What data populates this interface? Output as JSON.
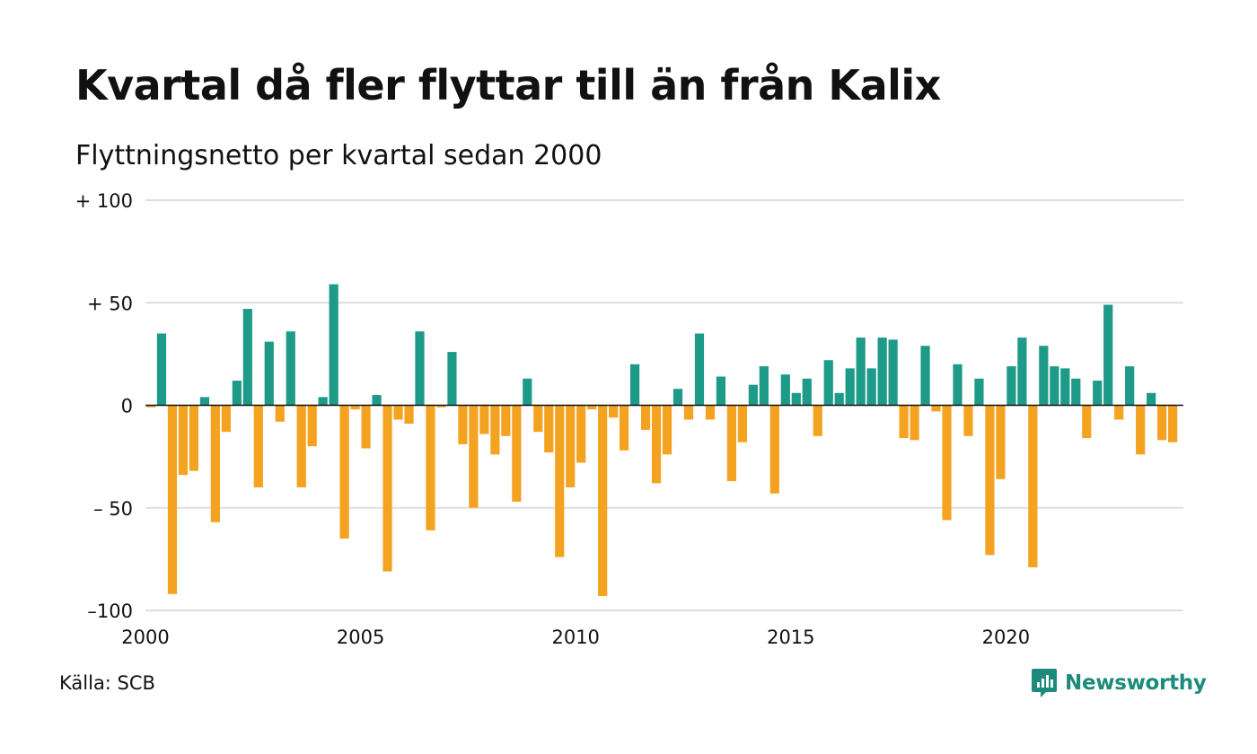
{
  "title": "Kvartal då fler flyttar till än från Kalix",
  "subtitle": "Flyttningsnetto per kvartal sedan 2000",
  "source": "Källa: SCB",
  "brand": {
    "name": "Newsworthy",
    "logo_icon": "bar-chart-speech-bubble-icon"
  },
  "chart_data": {
    "type": "bar",
    "x_start": "2000 Q1",
    "period": "quarter",
    "values": [
      -1,
      35,
      -92,
      -34,
      -32,
      4,
      -57,
      -13,
      12,
      47,
      -40,
      31,
      -8,
      36,
      -40,
      -20,
      4,
      59,
      -65,
      -2,
      -21,
      5,
      -81,
      -7,
      -9,
      36,
      -61,
      -1,
      26,
      -19,
      -50,
      -14,
      -24,
      -15,
      -47,
      13,
      -13,
      -23,
      -74,
      -40,
      -28,
      -2,
      -93,
      -6,
      -22,
      20,
      -12,
      -38,
      -24,
      8,
      -7,
      35,
      -7,
      14,
      -37,
      -18,
      10,
      19,
      -43,
      15,
      6,
      13,
      -15,
      22,
      6,
      18,
      33,
      18,
      33,
      32,
      -16,
      -17,
      29,
      -3,
      -56,
      20,
      -15,
      13,
      -73,
      -36,
      19,
      33,
      -79,
      29,
      19,
      18,
      13,
      -16,
      12,
      49,
      -7,
      19,
      -24,
      6,
      -17,
      -18
    ],
    "ylim": [
      -100,
      100
    ],
    "yticks": [
      {
        "value": 100,
        "label": "+ 100"
      },
      {
        "value": 50,
        "label": "+  50"
      },
      {
        "value": 0,
        "label": "0"
      },
      {
        "value": -50,
        "label": "– 50"
      },
      {
        "value": -100,
        "label": "–100"
      }
    ],
    "xticks": [
      "2000",
      "2005",
      "2010",
      "2015",
      "2020"
    ],
    "grid": true,
    "colors": {
      "positive": "#1d9a88",
      "negative": "#f4a321",
      "grid": "#dedee3",
      "zero_line": "#111111"
    }
  }
}
